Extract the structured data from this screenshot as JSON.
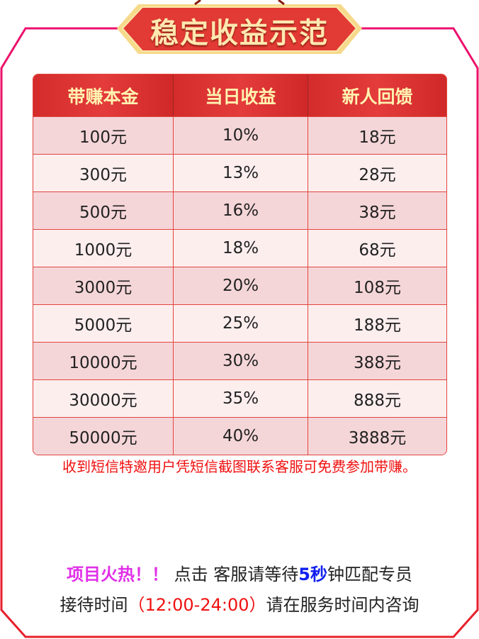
{
  "banner": {
    "title": "稳定收益示范"
  },
  "table": {
    "headers": [
      "带赚本金",
      "当日收益",
      "新人回馈"
    ],
    "rows": [
      [
        "100元",
        "10%",
        "18元"
      ],
      [
        "300元",
        "13%",
        "28元"
      ],
      [
        "500元",
        "16%",
        "38元"
      ],
      [
        "1000元",
        "18%",
        "68元"
      ],
      [
        "3000元",
        "20%",
        "108元"
      ],
      [
        "5000元",
        "25%",
        "188元"
      ],
      [
        "10000元",
        "30%",
        "388元"
      ],
      [
        "30000元",
        "35%",
        "888元"
      ],
      [
        "50000元",
        "40%",
        "3888元"
      ]
    ]
  },
  "notice": "收到短信特邀用户凭短信截图联系客服可免费参加带赚。",
  "footer": {
    "hot": "项目火热！！",
    "click": " 点击 ",
    "wait_prefix": "客服请等待",
    "seconds": "5秒",
    "wait_suffix": "钟匹配专员",
    "hours_label": "接待时间",
    "hours": "（12:00-24:00）",
    "hours_suffix": "请在服务时间内咨询"
  },
  "colors": {
    "frame_top": "#ec106e",
    "frame_bottom": "#e8202a",
    "header_bg": "#dc3030",
    "header_text": "#fff3b0",
    "notice": "#f01010",
    "hot": "#e030e8",
    "seconds": "#1020f0"
  }
}
